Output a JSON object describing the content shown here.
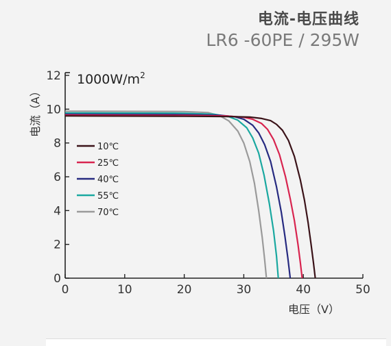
{
  "chart_data": {
    "type": "line",
    "title": "电流-电压曲线",
    "subtitle": "LR6 -60PE / 295W",
    "annotation": "1000W/m",
    "annotation_sup": "2",
    "xlabel": "电压（V）",
    "ylabel": "电流（A）",
    "xlim": [
      0,
      50
    ],
    "ylim": [
      0,
      12
    ],
    "xticks": [
      0,
      10,
      20,
      30,
      40,
      50
    ],
    "yticks": [
      0,
      2,
      4,
      6,
      8,
      10,
      12
    ],
    "grid": false,
    "legend_position": "left",
    "series": [
      {
        "name": "10℃",
        "color": "#3a1218",
        "x": [
          0,
          20,
          28,
          31,
          33,
          34.5,
          35.5,
          36.5,
          37.5,
          38.5,
          39.5,
          40.2,
          40.8,
          41.3,
          41.7,
          42.0
        ],
        "y": [
          9.6,
          9.58,
          9.56,
          9.53,
          9.45,
          9.32,
          9.1,
          8.75,
          8.15,
          7.2,
          5.8,
          4.6,
          3.3,
          2.0,
          0.9,
          0
        ]
      },
      {
        "name": "25℃",
        "color": "#d8244f",
        "x": [
          0,
          20,
          27,
          30,
          31.5,
          33,
          34,
          35,
          36,
          37,
          37.8,
          38.5,
          39.1,
          39.5,
          39.8
        ],
        "y": [
          9.65,
          9.63,
          9.6,
          9.52,
          9.4,
          9.15,
          8.8,
          8.2,
          7.3,
          6.0,
          4.7,
          3.4,
          2.0,
          0.9,
          0
        ]
      },
      {
        "name": "40℃",
        "color": "#262a80",
        "x": [
          0,
          20,
          26,
          28.5,
          30,
          31.5,
          32.5,
          33.5,
          34.5,
          35.5,
          36.3,
          36.9,
          37.4,
          37.8
        ],
        "y": [
          9.7,
          9.68,
          9.64,
          9.55,
          9.4,
          9.05,
          8.6,
          7.9,
          6.9,
          5.4,
          3.9,
          2.5,
          1.2,
          0
        ]
      },
      {
        "name": "55℃",
        "color": "#1aa8a0",
        "x": [
          0,
          20,
          25,
          27.5,
          29,
          30.5,
          31.5,
          32.5,
          33.4,
          34.3,
          35.0,
          35.5,
          35.8
        ],
        "y": [
          9.78,
          9.76,
          9.7,
          9.55,
          9.35,
          8.9,
          8.3,
          7.4,
          6.1,
          4.4,
          2.8,
          1.3,
          0
        ]
      },
      {
        "name": "70℃",
        "color": "#9a9a9a",
        "x": [
          0,
          20,
          24,
          26,
          27.5,
          29,
          30,
          31,
          31.8,
          32.5,
          33.1,
          33.5,
          33.8
        ],
        "y": [
          9.88,
          9.86,
          9.8,
          9.6,
          9.3,
          8.7,
          8.0,
          6.9,
          5.6,
          4.0,
          2.4,
          1.1,
          0
        ]
      }
    ]
  }
}
